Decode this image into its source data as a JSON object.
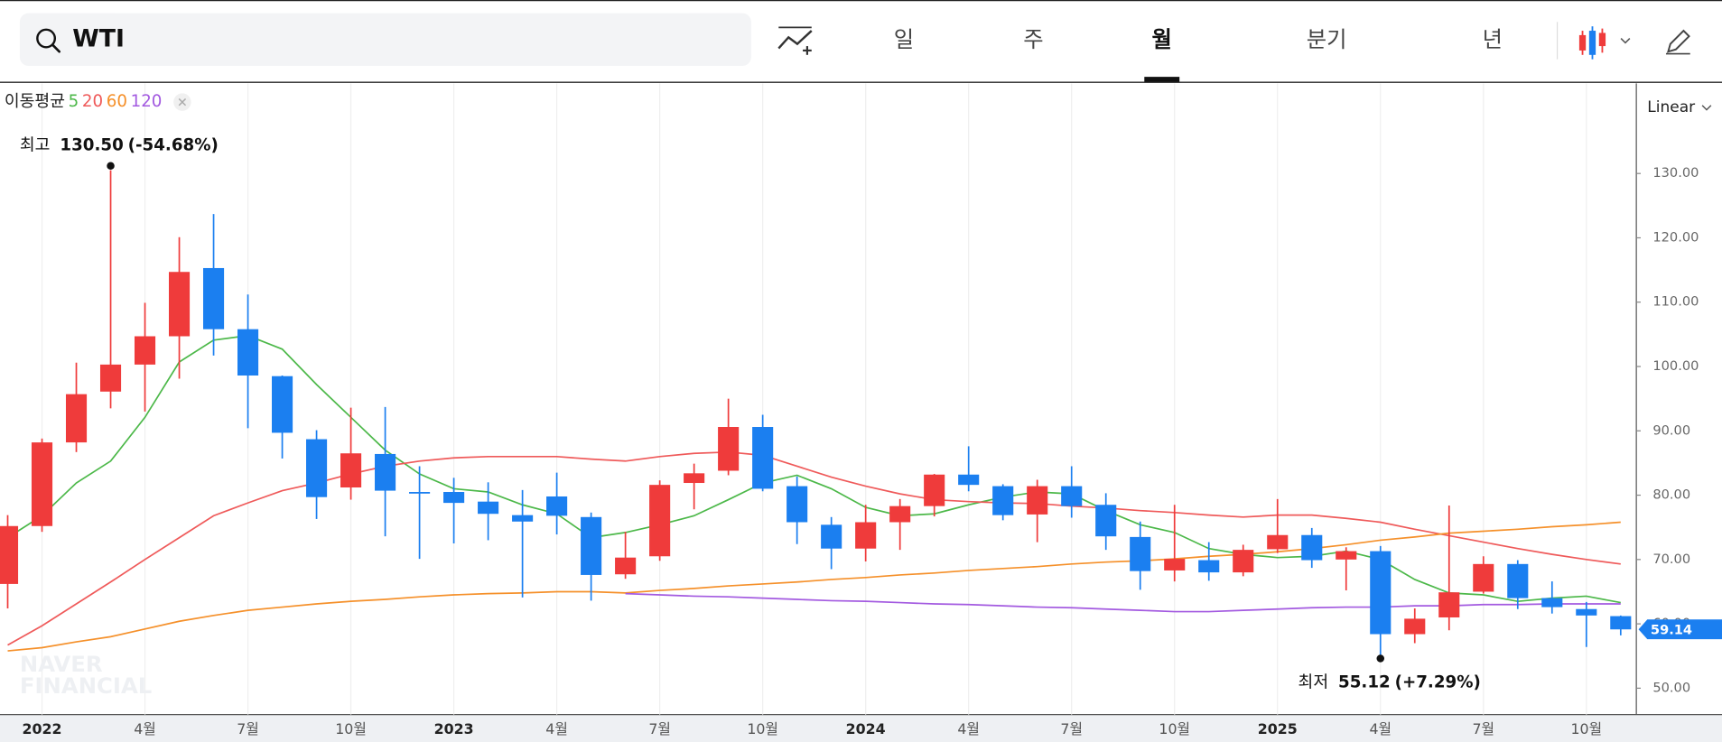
{
  "search": {
    "query": "WTI"
  },
  "tabs": [
    "일",
    "주",
    "월",
    "분기",
    "년"
  ],
  "active_tab": 2,
  "chart_data": {
    "type": "candlestick",
    "scale_mode": "Linear",
    "ma_label": "이동평균",
    "categories": [
      null,
      "2022",
      null,
      null,
      "4월",
      null,
      null,
      "7월",
      null,
      null,
      "10월",
      null,
      null,
      "2023",
      null,
      null,
      "4월",
      null,
      null,
      "7월",
      null,
      null,
      "10월",
      null,
      null,
      "2024",
      null,
      null,
      "4월",
      null,
      null,
      "7월",
      null,
      null,
      "10월",
      null,
      null,
      "2025",
      null,
      null,
      "4월",
      null,
      null,
      "7월",
      null,
      null,
      "10월",
      null
    ],
    "open": [
      66.2,
      75.2,
      88.2,
      96.1,
      100.3,
      104.7,
      115.3,
      105.8,
      98.5,
      88.7,
      81.2,
      86.4,
      80.5,
      80.5,
      79.0,
      76.9,
      79.8,
      76.6,
      67.7,
      70.5,
      81.9,
      83.8,
      90.6,
      81.4,
      75.4,
      71.7,
      75.8,
      78.3,
      83.2,
      81.4,
      77.0,
      81.4,
      78.5,
      73.5,
      68.3,
      69.9,
      68.0,
      71.6,
      73.8,
      70.0,
      71.3,
      58.4,
      61.0,
      65.0,
      69.3,
      64.0,
      62.3,
      61.2
    ],
    "high": [
      76.9,
      88.8,
      100.6,
      130.5,
      109.9,
      120.1,
      123.7,
      111.2,
      98.6,
      90.1,
      93.6,
      93.7,
      84.5,
      82.7,
      82.0,
      80.8,
      83.5,
      77.3,
      74.3,
      82.3,
      84.9,
      95.0,
      92.5,
      82.9,
      76.6,
      78.5,
      79.4,
      83.3,
      87.6,
      81.7,
      82.4,
      84.5,
      80.3,
      75.9,
      78.5,
      72.7,
      72.3,
      79.4,
      74.9,
      71.9,
      72.1,
      62.4,
      78.4,
      70.5,
      69.9,
      66.6,
      63.4,
      61.3
    ],
    "low": [
      62.4,
      74.3,
      86.7,
      93.5,
      93.0,
      98.1,
      101.7,
      90.4,
      85.7,
      76.3,
      79.3,
      73.6,
      70.1,
      72.5,
      73.0,
      64.1,
      73.9,
      63.6,
      67.0,
      69.8,
      77.8,
      83.1,
      80.6,
      72.4,
      68.5,
      69.7,
      71.5,
      76.7,
      80.6,
      76.1,
      72.7,
      76.5,
      71.5,
      65.3,
      66.6,
      66.7,
      67.4,
      71.0,
      68.7,
      65.2,
      55.12,
      57.0,
      59.0,
      64.7,
      62.3,
      61.6,
      56.4,
      58.2
    ],
    "close": [
      75.2,
      88.2,
      95.7,
      100.3,
      104.7,
      114.7,
      105.8,
      98.6,
      89.7,
      79.7,
      86.5,
      80.7,
      80.3,
      78.8,
      77.1,
      75.9,
      76.8,
      67.6,
      70.3,
      81.6,
      83.4,
      90.6,
      81.0,
      75.8,
      71.7,
      75.8,
      78.3,
      83.2,
      81.6,
      76.9,
      81.4,
      78.3,
      73.6,
      68.2,
      70.1,
      68.0,
      71.5,
      73.8,
      69.9,
      71.3,
      58.4,
      60.8,
      64.9,
      69.3,
      64.0,
      62.6,
      61.3,
      59.14
    ],
    "up_color": "#ef3b3b",
    "down_color": "#1b7ff0",
    "moving_averages": [
      {
        "name": "5",
        "color": "#4cb849",
        "values": [
          73.4,
          76.8,
          81.9,
          85.3,
          92.1,
          100.7,
          104.1,
          104.8,
          102.7,
          97.2,
          92.1,
          87.0,
          83.3,
          81.0,
          80.5,
          78.5,
          77.1,
          73.4,
          74.2,
          75.4,
          76.8,
          79.3,
          81.9,
          83.1,
          81.0,
          78.1,
          76.8,
          77.1,
          78.5,
          79.7,
          80.5,
          80.2,
          77.6,
          75.4,
          74.2,
          71.7,
          70.8,
          70.3,
          70.5,
          71.3,
          70.0,
          66.9,
          64.8,
          64.5,
          63.5,
          64.0,
          64.3,
          63.3
        ]
      },
      {
        "name": "20",
        "color": "#ef5a5a",
        "values": [
          56.7,
          59.7,
          63.1,
          66.5,
          70.0,
          73.4,
          76.8,
          78.8,
          80.7,
          81.9,
          83.3,
          84.5,
          85.3,
          85.8,
          86.0,
          86.0,
          86.0,
          85.6,
          85.3,
          86.0,
          86.5,
          86.7,
          86.2,
          84.5,
          82.8,
          81.4,
          80.2,
          79.3,
          79.0,
          78.8,
          78.7,
          78.3,
          78.0,
          77.6,
          77.3,
          76.9,
          76.6,
          76.9,
          76.9,
          76.4,
          75.8,
          74.7,
          73.7,
          72.7,
          71.7,
          70.8,
          70.0,
          69.3
        ]
      },
      {
        "name": "60",
        "color": "#f5902a",
        "values": [
          55.8,
          56.3,
          57.2,
          58.0,
          59.2,
          60.4,
          61.3,
          62.1,
          62.6,
          63.1,
          63.5,
          63.8,
          64.2,
          64.5,
          64.7,
          64.8,
          65.0,
          65.0,
          64.8,
          65.2,
          65.5,
          65.9,
          66.2,
          66.5,
          66.9,
          67.2,
          67.6,
          67.9,
          68.3,
          68.6,
          68.9,
          69.3,
          69.6,
          69.8,
          70.1,
          70.5,
          70.8,
          71.2,
          71.7,
          72.3,
          73.0,
          73.5,
          74.1,
          74.4,
          74.7,
          75.1,
          75.4,
          75.8
        ]
      },
      {
        "name": "120",
        "color": "#a35ae0",
        "values": [
          null,
          null,
          null,
          null,
          null,
          null,
          null,
          null,
          null,
          null,
          null,
          null,
          null,
          null,
          null,
          null,
          null,
          null,
          64.7,
          64.5,
          64.3,
          64.2,
          64.0,
          63.8,
          63.6,
          63.5,
          63.3,
          63.1,
          63.0,
          62.8,
          62.6,
          62.5,
          62.3,
          62.1,
          61.9,
          61.9,
          62.1,
          62.3,
          62.5,
          62.6,
          62.6,
          62.8,
          62.8,
          63.0,
          63.0,
          63.1,
          63.1,
          63.1
        ]
      }
    ],
    "ylim": [
      45.9,
      144.0
    ],
    "yticks": [
      {
        "value": 50,
        "label": "50.00"
      },
      {
        "value": 60,
        "label": "60.00"
      },
      {
        "value": 70,
        "label": "70.00"
      },
      {
        "value": 80,
        "label": "80.00"
      },
      {
        "value": 90,
        "label": "90.00"
      },
      {
        "value": 100,
        "label": "100.00"
      },
      {
        "value": 110,
        "label": "110.00"
      },
      {
        "value": 120,
        "label": "120.00"
      },
      {
        "value": 130,
        "label": "130.00"
      }
    ],
    "last_price": 59.14,
    "high_note": {
      "label": "최고",
      "value": 130.5,
      "value_label": "130.50",
      "change": "(-54.68%)"
    },
    "low_note": {
      "label": "최저",
      "value": 55.12,
      "change": "(+7.29%)"
    },
    "watermark": [
      "NAVER",
      "FINANCIAL"
    ]
  }
}
